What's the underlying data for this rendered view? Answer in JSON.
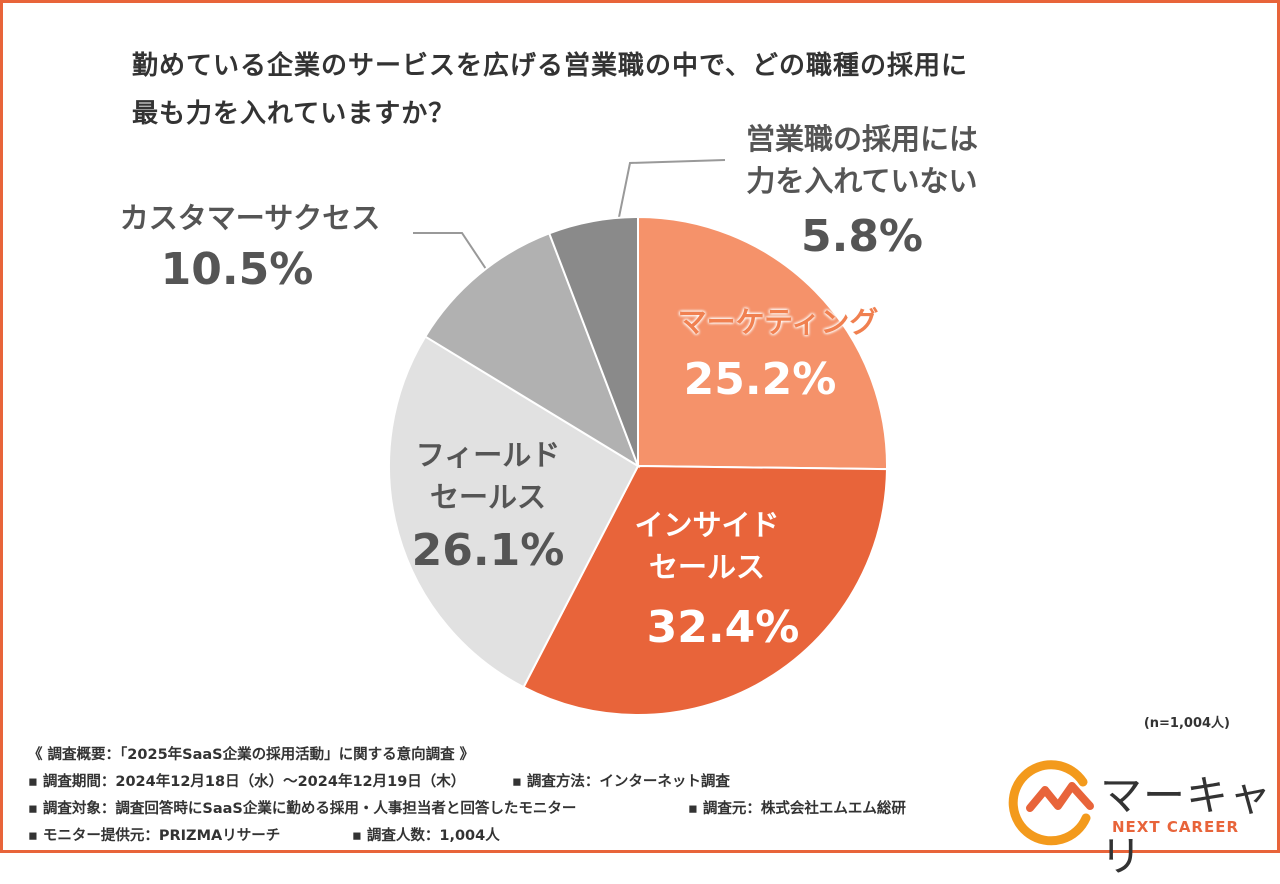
{
  "chart_data": {
    "type": "pie",
    "title": "勤めている企業のサービスを広げる営業職の中で、どの職種の採用に\n最も力を入れていますか？",
    "categories": [
      "マーケティング",
      "インサイド\nセールス",
      "フィールド\nセールス",
      "カスタマーサクセス",
      "営業職の採用には\n力を入れていない"
    ],
    "values": [
      25.2,
      32.4,
      26.1,
      10.5,
      5.8
    ],
    "value_labels": [
      "25.2%",
      "32.4%",
      "26.1%",
      "10.5%",
      "5.8%"
    ],
    "colors": [
      "#f5926a",
      "#e8643a",
      "#e1e1e1",
      "#b1b1b1",
      "#8a8a8a"
    ],
    "sample_size": "(n=1,004人)"
  },
  "survey_notes": [
    [
      "《 調査概要：「2025年SaaS企業の採用活動」に関する意向調査 》"
    ],
    [
      "▪ 調査期間：2024年12月18日（水）～2024年12月19日（木）",
      "▪ 調査方法：インターネット調査"
    ],
    [
      "▪ 調査対象：調査回答時にSaaS企業に勤める採用・人事担当者と回答したモニター",
      "▪ 調査元：株式会社エムエム総研"
    ],
    [
      "▪ モニター提供元：PRIZMAリサーチ",
      "▪ 調査人数：1,004人"
    ]
  ],
  "logo": {
    "name": "マーキャリ",
    "tagline": "NEXT CAREER"
  }
}
